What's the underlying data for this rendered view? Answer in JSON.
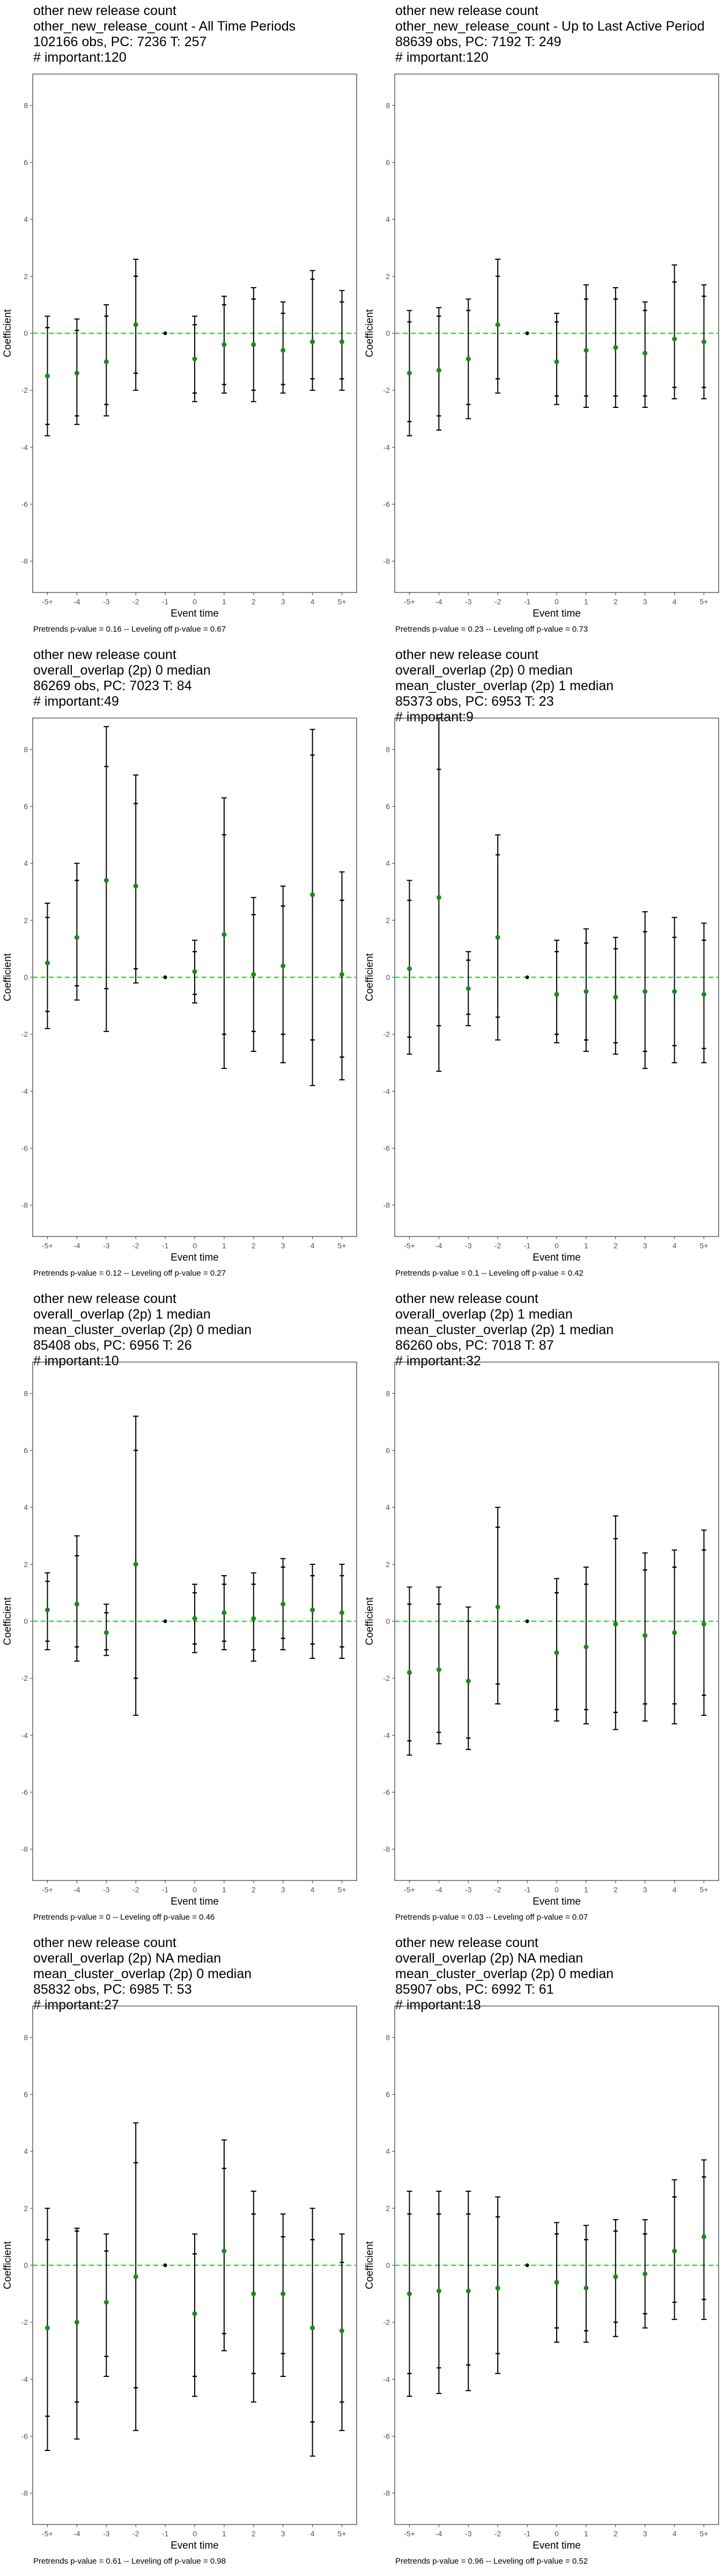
{
  "colors": {
    "zero_line": "#33cc33",
    "point": "#1a8a1a",
    "error_bar": "#000000",
    "frame": "#333333",
    "tick_text": "#555555"
  },
  "chart_data": [
    {
      "type": "scatter",
      "title_lines": [
        "other new release count",
        "other_new_release_count - All Time Periods",
        "102166 obs, PC: 7236 T: 257",
        "# important:120"
      ],
      "caption": "Pretrends p-value = 0.16 -- Leveling off p-value = 0.67",
      "xlabel": "Event time",
      "ylabel": "Coefficient",
      "categories": [
        "-5+",
        "-4",
        "-3",
        "-2",
        "-1",
        "0",
        "1",
        "2",
        "3",
        "4",
        "5+"
      ],
      "yticks": [
        -8,
        -6,
        -4,
        -2,
        0,
        2,
        4,
        6,
        8
      ],
      "ylim": [
        -9.1,
        9.1
      ],
      "values": [
        -1.5,
        -1.4,
        -1.0,
        0.3,
        0,
        -0.9,
        -0.4,
        -0.4,
        -0.6,
        -0.3,
        -0.3
      ],
      "ci_inner": [
        [
          -3.2,
          0.2
        ],
        [
          -2.9,
          0.1
        ],
        [
          -2.5,
          0.6
        ],
        [
          -1.4,
          2.0
        ],
        null,
        [
          -2.1,
          0.3
        ],
        [
          -1.8,
          1.0
        ],
        [
          -2.0,
          1.2
        ],
        [
          -1.8,
          0.7
        ],
        [
          -1.6,
          1.9
        ],
        [
          -1.6,
          1.1
        ]
      ],
      "ci_outer": [
        [
          -3.6,
          0.6
        ],
        [
          -3.2,
          0.5
        ],
        [
          -2.9,
          1.0
        ],
        [
          -2.0,
          2.6
        ],
        null,
        [
          -2.4,
          0.6
        ],
        [
          -2.1,
          1.3
        ],
        [
          -2.4,
          1.6
        ],
        [
          -2.1,
          1.1
        ],
        [
          -2.0,
          2.2
        ],
        [
          -2.0,
          1.5
        ]
      ]
    },
    {
      "type": "scatter",
      "title_lines": [
        "other new release count",
        "other_new_release_count - Up to Last Active Period",
        "88639 obs, PC: 7192 T: 249",
        "# important:120"
      ],
      "caption": "Pretrends p-value = 0.23 -- Leveling off p-value = 0.73",
      "xlabel": "Event time",
      "ylabel": "Coefficient",
      "categories": [
        "-5+",
        "-4",
        "-3",
        "-2",
        "-1",
        "0",
        "1",
        "2",
        "3",
        "4",
        "5+"
      ],
      "yticks": [
        -8,
        -6,
        -4,
        -2,
        0,
        2,
        4,
        6,
        8
      ],
      "ylim": [
        -9.1,
        9.1
      ],
      "values": [
        -1.4,
        -1.3,
        -0.9,
        0.3,
        0,
        -1.0,
        -0.6,
        -0.5,
        -0.7,
        -0.2,
        -0.3
      ],
      "ci_inner": [
        [
          -3.1,
          0.4
        ],
        [
          -2.9,
          0.6
        ],
        [
          -2.5,
          0.8
        ],
        [
          -1.6,
          2.0
        ],
        null,
        [
          -2.2,
          0.4
        ],
        [
          -2.2,
          1.2
        ],
        [
          -2.2,
          1.2
        ],
        [
          -2.2,
          0.8
        ],
        [
          -1.9,
          1.8
        ],
        [
          -1.9,
          1.3
        ]
      ],
      "ci_outer": [
        [
          -3.6,
          0.8
        ],
        [
          -3.4,
          0.9
        ],
        [
          -3.0,
          1.2
        ],
        [
          -2.1,
          2.6
        ],
        null,
        [
          -2.5,
          0.7
        ],
        [
          -2.6,
          1.7
        ],
        [
          -2.6,
          1.6
        ],
        [
          -2.6,
          1.1
        ],
        [
          -2.3,
          2.4
        ],
        [
          -2.3,
          1.7
        ]
      ]
    },
    {
      "type": "scatter",
      "title_lines": [
        "other new release count",
        "overall_overlap (2p) 0 median",
        "86269 obs, PC: 7023 T: 84",
        "# important:49"
      ],
      "caption": "Pretrends p-value = 0.12 -- Leveling off p-value = 0.27",
      "xlabel": "Event time",
      "ylabel": "Coefficient",
      "categories": [
        "-5+",
        "-4",
        "-3",
        "-2",
        "-1",
        "0",
        "1",
        "2",
        "3",
        "4",
        "5+"
      ],
      "yticks": [
        -8,
        -6,
        -4,
        -2,
        0,
        2,
        4,
        6,
        8
      ],
      "ylim": [
        -9.1,
        9.1
      ],
      "values": [
        0.5,
        1.4,
        3.4,
        3.2,
        0,
        0.2,
        1.5,
        0.1,
        0.4,
        2.9,
        0.1
      ],
      "ci_inner": [
        [
          -1.2,
          2.1
        ],
        [
          -0.3,
          3.4
        ],
        [
          -0.4,
          7.4
        ],
        [
          0.3,
          6.1
        ],
        null,
        [
          -0.6,
          0.9
        ],
        [
          -2.0,
          5.0
        ],
        [
          -1.9,
          2.2
        ],
        [
          -2.0,
          2.5
        ],
        [
          -2.2,
          7.8
        ],
        [
          -2.8,
          2.7
        ]
      ],
      "ci_outer": [
        [
          -1.8,
          2.6
        ],
        [
          -0.8,
          4.0
        ],
        [
          -1.9,
          8.8
        ],
        [
          -0.2,
          7.1
        ],
        null,
        [
          -0.9,
          1.3
        ],
        [
          -3.2,
          6.3
        ],
        [
          -2.6,
          2.8
        ],
        [
          -3.0,
          3.2
        ],
        [
          -3.8,
          8.7
        ],
        [
          -3.6,
          3.7
        ]
      ]
    },
    {
      "type": "scatter",
      "title_lines": [
        "other new release count",
        "overall_overlap (2p) 0 median",
        "mean_cluster_overlap (2p) 1 median",
        "85373 obs, PC: 6953 T: 23",
        "# important:9"
      ],
      "caption": "Pretrends p-value = 0.1 -- Leveling off p-value = 0.42",
      "xlabel": "Event time",
      "ylabel": "Coefficient",
      "categories": [
        "-5+",
        "-4",
        "-3",
        "-2",
        "-1",
        "0",
        "1",
        "2",
        "3",
        "4",
        "5+"
      ],
      "yticks": [
        -8,
        -6,
        -4,
        -2,
        0,
        2,
        4,
        6,
        8
      ],
      "ylim": [
        -9.1,
        9.1
      ],
      "values": [
        0.3,
        2.8,
        -0.4,
        1.4,
        0,
        -0.6,
        -0.5,
        -0.7,
        -0.5,
        -0.5,
        -0.6
      ],
      "ci_inner": [
        [
          -2.1,
          2.7
        ],
        [
          -1.7,
          7.3
        ],
        [
          -1.3,
          0.6
        ],
        [
          -1.4,
          4.3
        ],
        null,
        [
          -2.0,
          0.9
        ],
        [
          -2.2,
          1.2
        ],
        [
          -2.3,
          1.0
        ],
        [
          -2.6,
          1.6
        ],
        [
          -2.4,
          1.4
        ],
        [
          -2.5,
          1.3
        ]
      ],
      "ci_outer": [
        [
          -2.7,
          3.4
        ],
        [
          -3.3,
          9.1
        ],
        [
          -1.7,
          0.9
        ],
        [
          -2.2,
          5.0
        ],
        null,
        [
          -2.3,
          1.3
        ],
        [
          -2.6,
          1.7
        ],
        [
          -2.7,
          1.4
        ],
        [
          -3.2,
          2.3
        ],
        [
          -3.0,
          2.1
        ],
        [
          -3.0,
          1.9
        ]
      ]
    },
    {
      "type": "scatter",
      "title_lines": [
        "other new release count",
        "overall_overlap (2p) 1 median",
        "mean_cluster_overlap (2p) 0 median",
        "85408 obs, PC: 6956 T: 26",
        "# important:10"
      ],
      "caption": "Pretrends p-value = 0 -- Leveling off p-value = 0.46",
      "xlabel": "Event time",
      "ylabel": "Coefficient",
      "categories": [
        "-5+",
        "-4",
        "-3",
        "-2",
        "-1",
        "0",
        "1",
        "2",
        "3",
        "4",
        "5+"
      ],
      "yticks": [
        -8,
        -6,
        -4,
        -2,
        0,
        2,
        4,
        6,
        8
      ],
      "ylim": [
        -9.1,
        9.1
      ],
      "values": [
        0.4,
        0.6,
        -0.4,
        2.0,
        0,
        0.1,
        0.3,
        0.1,
        0.6,
        0.4,
        0.3
      ],
      "ci_inner": [
        [
          -0.7,
          1.4
        ],
        [
          -0.9,
          2.3
        ],
        [
          -1.0,
          0.3
        ],
        [
          -2.0,
          6.0
        ],
        null,
        [
          -0.8,
          1.0
        ],
        [
          -0.7,
          1.3
        ],
        [
          -1.0,
          1.3
        ],
        [
          -0.6,
          1.9
        ],
        [
          -0.8,
          1.6
        ],
        [
          -0.9,
          1.6
        ]
      ],
      "ci_outer": [
        [
          -1.0,
          1.7
        ],
        [
          -1.4,
          3.0
        ],
        [
          -1.2,
          0.6
        ],
        [
          -3.3,
          7.2
        ],
        null,
        [
          -1.1,
          1.3
        ],
        [
          -1.0,
          1.6
        ],
        [
          -1.4,
          1.7
        ],
        [
          -1.0,
          2.2
        ],
        [
          -1.3,
          2.0
        ],
        [
          -1.3,
          2.0
        ]
      ]
    },
    {
      "type": "scatter",
      "title_lines": [
        "other new release count",
        "overall_overlap (2p) 1 median",
        "mean_cluster_overlap (2p) 1 median",
        "86260 obs, PC: 7018 T: 87",
        "# important:32"
      ],
      "caption": "Pretrends p-value = 0.03 -- Leveling off p-value = 0.07",
      "xlabel": "Event time",
      "ylabel": "Coefficient",
      "categories": [
        "-5+",
        "-4",
        "-3",
        "-2",
        "-1",
        "0",
        "1",
        "2",
        "3",
        "4",
        "5+"
      ],
      "yticks": [
        -8,
        -6,
        -4,
        -2,
        0,
        2,
        4,
        6,
        8
      ],
      "ylim": [
        -9.1,
        9.1
      ],
      "values": [
        -1.8,
        -1.7,
        -2.1,
        0.5,
        0,
        -1.1,
        -0.9,
        -0.1,
        -0.5,
        -0.4,
        -0.1
      ],
      "ci_inner": [
        [
          -4.2,
          0.6
        ],
        [
          -3.9,
          0.6
        ],
        [
          -4.1,
          0.0
        ],
        [
          -2.2,
          3.3
        ],
        null,
        [
          -3.1,
          1.0
        ],
        [
          -3.1,
          1.3
        ],
        [
          -3.2,
          2.9
        ],
        [
          -2.9,
          1.8
        ],
        [
          -2.9,
          1.9
        ],
        [
          -2.6,
          2.5
        ]
      ],
      "ci_outer": [
        [
          -4.7,
          1.2
        ],
        [
          -4.3,
          1.2
        ],
        [
          -4.5,
          0.5
        ],
        [
          -2.9,
          4.0
        ],
        null,
        [
          -3.5,
          1.5
        ],
        [
          -3.6,
          1.9
        ],
        [
          -3.8,
          3.7
        ],
        [
          -3.5,
          2.4
        ],
        [
          -3.6,
          2.5
        ],
        [
          -3.3,
          3.2
        ]
      ]
    },
    {
      "type": "scatter",
      "title_lines": [
        "other new release count",
        "overall_overlap (2p) NA median",
        "mean_cluster_overlap (2p) 0 median",
        "85832 obs, PC: 6985 T: 53",
        "# important:27"
      ],
      "caption": "Pretrends p-value = 0.61 -- Leveling off p-value = 0.98",
      "xlabel": "Event time",
      "ylabel": "Coefficient",
      "categories": [
        "-5+",
        "-4",
        "-3",
        "-2",
        "-1",
        "0",
        "1",
        "2",
        "3",
        "4",
        "5+"
      ],
      "yticks": [
        -8,
        -6,
        -4,
        -2,
        0,
        2,
        4,
        6,
        8
      ],
      "ylim": [
        -9.1,
        9.1
      ],
      "values": [
        -2.2,
        -2.0,
        -1.3,
        -0.4,
        0,
        -1.7,
        0.5,
        -1.0,
        -1.0,
        -2.2,
        -2.3
      ],
      "ci_inner": [
        [
          -5.3,
          0.9
        ],
        [
          -4.8,
          1.2
        ],
        [
          -3.2,
          0.5
        ],
        [
          -4.3,
          3.6
        ],
        null,
        [
          -3.9,
          0.4
        ],
        [
          -2.4,
          3.4
        ],
        [
          -3.8,
          1.8
        ],
        [
          -3.1,
          1.0
        ],
        [
          -5.5,
          0.9
        ],
        [
          -4.8,
          0.1
        ]
      ],
      "ci_outer": [
        [
          -6.5,
          2.0
        ],
        [
          -6.1,
          1.3
        ],
        [
          -3.9,
          1.1
        ],
        [
          -5.8,
          5.0
        ],
        null,
        [
          -4.6,
          1.1
        ],
        [
          -3.0,
          4.4
        ],
        [
          -4.8,
          2.6
        ],
        [
          -3.9,
          1.8
        ],
        [
          -6.7,
          2.0
        ],
        [
          -5.8,
          1.1
        ]
      ]
    },
    {
      "type": "scatter",
      "title_lines": [
        "other new release count",
        "overall_overlap (2p) NA median",
        "mean_cluster_overlap (2p) 0 median",
        "85907 obs, PC: 6992 T: 61",
        "# important:18"
      ],
      "caption": "Pretrends p-value = 0.96 -- Leveling off p-value = 0.52",
      "xlabel": "Event time",
      "ylabel": "Coefficient",
      "categories": [
        "-5+",
        "-4",
        "-3",
        "-2",
        "-1",
        "0",
        "1",
        "2",
        "3",
        "4",
        "5+"
      ],
      "yticks": [
        -8,
        -6,
        -4,
        -2,
        0,
        2,
        4,
        6,
        8
      ],
      "ylim": [
        -9.1,
        9.1
      ],
      "values": [
        -1.0,
        -0.9,
        -0.9,
        -0.8,
        0,
        -0.6,
        -0.8,
        -0.4,
        -0.3,
        0.5,
        1.0
      ],
      "ci_inner": [
        [
          -3.8,
          1.8
        ],
        [
          -3.6,
          1.8
        ],
        [
          -3.5,
          1.8
        ],
        [
          -3.1,
          1.7
        ],
        null,
        [
          -2.2,
          1.1
        ],
        [
          -2.3,
          0.9
        ],
        [
          -2.0,
          1.2
        ],
        [
          -1.7,
          1.1
        ],
        [
          -1.3,
          2.4
        ],
        [
          -1.2,
          3.1
        ]
      ],
      "ci_outer": [
        [
          -4.6,
          2.6
        ],
        [
          -4.5,
          2.6
        ],
        [
          -4.4,
          2.6
        ],
        [
          -3.8,
          2.4
        ],
        null,
        [
          -2.7,
          1.5
        ],
        [
          -2.7,
          1.4
        ],
        [
          -2.5,
          1.6
        ],
        [
          -2.2,
          1.6
        ],
        [
          -1.9,
          3.0
        ],
        [
          -1.9,
          3.7
        ]
      ]
    }
  ]
}
